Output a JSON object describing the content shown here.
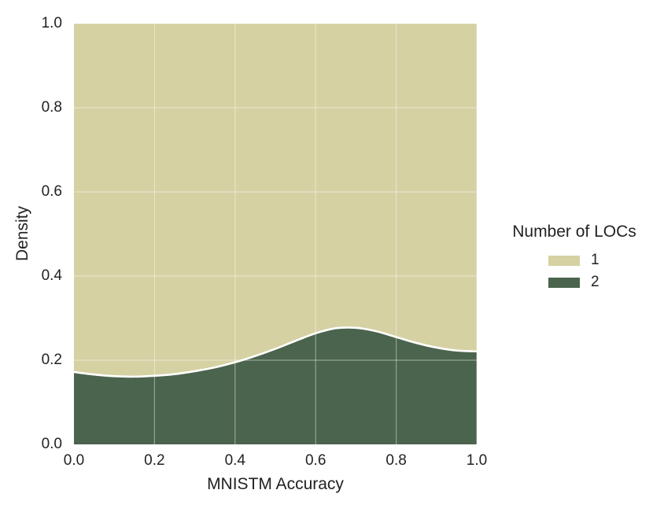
{
  "figure": {
    "background": "#ffffff",
    "text_color": "#222222"
  },
  "chart_data": {
    "type": "area",
    "subtype": "stacked-density-fill",
    "title": "",
    "xlabel": "MNISTM Accuracy",
    "ylabel": "Density",
    "xlim": [
      0.0,
      1.0
    ],
    "ylim": [
      0.0,
      1.0
    ],
    "x_ticks": [
      "0.0",
      "0.2",
      "0.4",
      "0.6",
      "0.8",
      "1.0"
    ],
    "y_ticks": [
      "0.0",
      "0.2",
      "0.4",
      "0.6",
      "0.8",
      "1.0"
    ],
    "grid": true,
    "grid_color": "rgba(255,255,255,0.4)",
    "separator_line_color": "#ffffff",
    "x": [
      0.0,
      0.05,
      0.1,
      0.15,
      0.2,
      0.25,
      0.3,
      0.35,
      0.4,
      0.45,
      0.5,
      0.55,
      0.6,
      0.65,
      0.7,
      0.75,
      0.8,
      0.85,
      0.9,
      0.95,
      1.0
    ],
    "series": [
      {
        "name": "1",
        "color": "#d5d1a3",
        "values": [
          0.828,
          0.834,
          0.838,
          0.839,
          0.837,
          0.833,
          0.826,
          0.817,
          0.805,
          0.79,
          0.773,
          0.754,
          0.736,
          0.724,
          0.723,
          0.731,
          0.745,
          0.759,
          0.77,
          0.777,
          0.779
        ]
      },
      {
        "name": "2",
        "color": "#4b644d",
        "values": [
          0.172,
          0.166,
          0.162,
          0.161,
          0.163,
          0.167,
          0.174,
          0.183,
          0.195,
          0.21,
          0.227,
          0.246,
          0.264,
          0.276,
          0.277,
          0.269,
          0.255,
          0.241,
          0.23,
          0.223,
          0.221
        ]
      }
    ],
    "legend": {
      "title": "Number of LOCs",
      "position": "center right",
      "entries": [
        {
          "label": "1",
          "color": "#d5d1a3"
        },
        {
          "label": "2",
          "color": "#4b644d"
        }
      ]
    }
  }
}
